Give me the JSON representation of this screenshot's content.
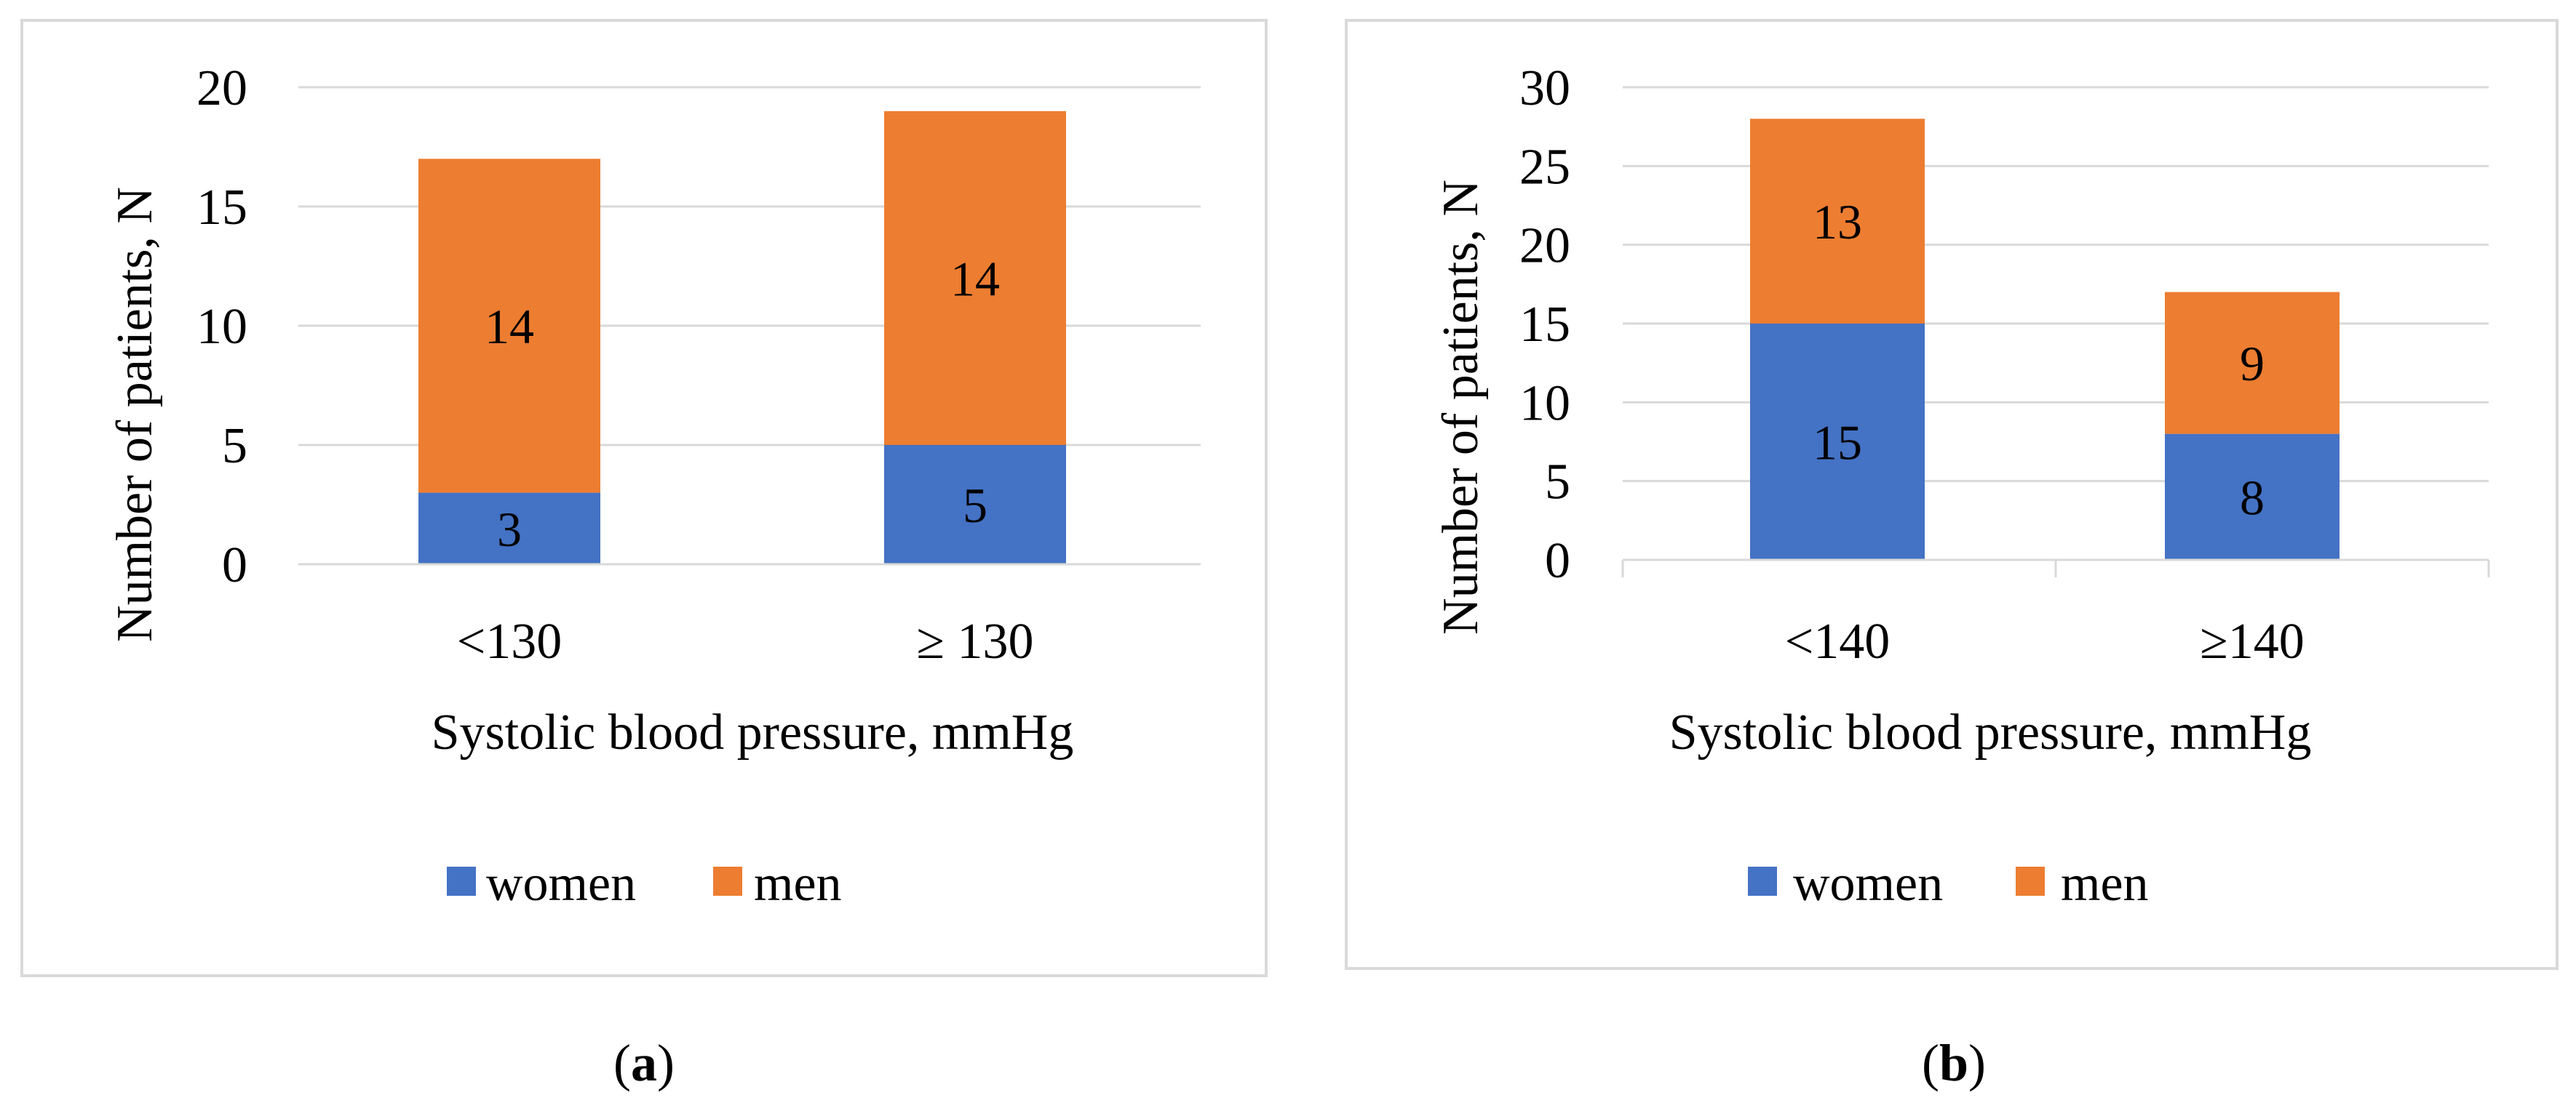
{
  "figure": {
    "panel_labels": [
      "a",
      "b"
    ],
    "colors": {
      "women": "#4472C4",
      "men": "#ED7D31",
      "grid": "#D9D9D9",
      "frame": "#D9D9D9",
      "text": "#000000"
    }
  },
  "chart_data": [
    {
      "type": "bar",
      "stacked": true,
      "title": "",
      "categories": [
        "<130",
        "≥ 130"
      ],
      "series": [
        {
          "name": "women",
          "values": [
            3,
            5
          ]
        },
        {
          "name": "men",
          "values": [
            14,
            14
          ]
        }
      ],
      "xlabel": "Systolic blood pressure, mmHg",
      "ylabel": "Number of patients, N",
      "ylim": [
        0,
        20
      ],
      "yticks": [
        "0",
        "5",
        "10",
        "15",
        "20"
      ],
      "grid": true,
      "legend": "bottom",
      "x_tick_marks": false
    },
    {
      "type": "bar",
      "stacked": true,
      "title": "",
      "categories": [
        "<140",
        "≥140"
      ],
      "series": [
        {
          "name": "women",
          "values": [
            15,
            8
          ]
        },
        {
          "name": "men",
          "values": [
            13,
            9
          ]
        }
      ],
      "xlabel": "Systolic blood pressure, mmHg",
      "ylabel": "Number of patients, N",
      "ylim": [
        0,
        30
      ],
      "yticks": [
        "0",
        "5",
        "10",
        "15",
        "20",
        "25",
        "30"
      ],
      "grid": true,
      "legend": "bottom",
      "x_tick_marks": true
    }
  ]
}
